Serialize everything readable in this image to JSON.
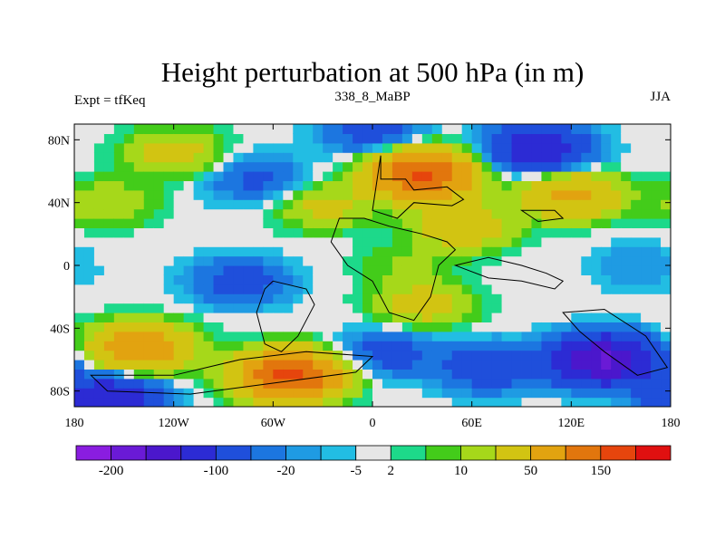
{
  "chart_data": {
    "type": "heatmap",
    "title": "Height perturbation at 500 hPa (in m)",
    "subtitle_left": "Expt = tfKeq",
    "subtitle_center": "338_8_MaBP",
    "subtitle_right": "JJA",
    "x_ticks": [
      {
        "value": -180,
        "label": "180"
      },
      {
        "value": -120,
        "label": "120W"
      },
      {
        "value": -60,
        "label": "60W"
      },
      {
        "value": 0,
        "label": "0"
      },
      {
        "value": 60,
        "label": "60E"
      },
      {
        "value": 120,
        "label": "120E"
      },
      {
        "value": 180,
        "label": "180"
      }
    ],
    "y_ticks": [
      {
        "value": 80,
        "label": "80N"
      },
      {
        "value": 40,
        "label": "40N"
      },
      {
        "value": 0,
        "label": "0"
      },
      {
        "value": -40,
        "label": "40S"
      },
      {
        "value": -80,
        "label": "80S"
      }
    ],
    "xlim": [
      -180,
      180
    ],
    "ylim": [
      -90,
      90
    ],
    "colorbar": {
      "colors": [
        "#8a1de0",
        "#6a1ad6",
        "#4b17cc",
        "#2c2bd4",
        "#1f4fdb",
        "#1c76e0",
        "#1f9be3",
        "#22bde3",
        "#e6e6e6",
        "#1dd98a",
        "#43cc1a",
        "#a6d81a",
        "#d2c412",
        "#e2a310",
        "#e2760d",
        "#e6450d",
        "#e01010"
      ],
      "labels": [
        {
          "after_box": 1,
          "text": "-200"
        },
        {
          "after_box": 4,
          "text": "-100"
        },
        {
          "after_box": 6,
          "text": "-20"
        },
        {
          "after_box": 8,
          "text": "-5"
        },
        {
          "after_box": 9,
          "text": "2"
        },
        {
          "after_box": 11,
          "text": "10"
        },
        {
          "after_box": 13,
          "text": "50"
        },
        {
          "after_box": 15,
          "text": "150"
        }
      ]
    },
    "field_sources": [
      {
        "lon": -120,
        "lat": 72,
        "value": 30
      },
      {
        "lon": 30,
        "lat": 58,
        "value": 160
      },
      {
        "lon": -30,
        "lat": 38,
        "value": 25
      },
      {
        "lon": 120,
        "lat": 45,
        "value": 60
      },
      {
        "lon": -160,
        "lat": 40,
        "value": 20
      },
      {
        "lon": -50,
        "lat": -70,
        "value": 170
      },
      {
        "lon": -140,
        "lat": -52,
        "value": 90
      },
      {
        "lon": 30,
        "lat": -25,
        "value": 30
      },
      {
        "lon": 55,
        "lat": 25,
        "value": 40
      },
      {
        "lon": 20,
        "lat": 0,
        "value": 10
      },
      {
        "lon": 140,
        "lat": -60,
        "value": -160
      },
      {
        "lon": 100,
        "lat": 75,
        "value": -80
      },
      {
        "lon": -80,
        "lat": -10,
        "value": -30
      },
      {
        "lon": 70,
        "lat": -65,
        "value": -40
      },
      {
        "lon": 10,
        "lat": -55,
        "value": -30
      },
      {
        "lon": -160,
        "lat": -85,
        "value": -90
      },
      {
        "lon": -70,
        "lat": 55,
        "value": -25
      },
      {
        "lon": 160,
        "lat": 0,
        "value": -10
      },
      {
        "lon": 0,
        "lat": 85,
        "value": -30
      }
    ]
  }
}
